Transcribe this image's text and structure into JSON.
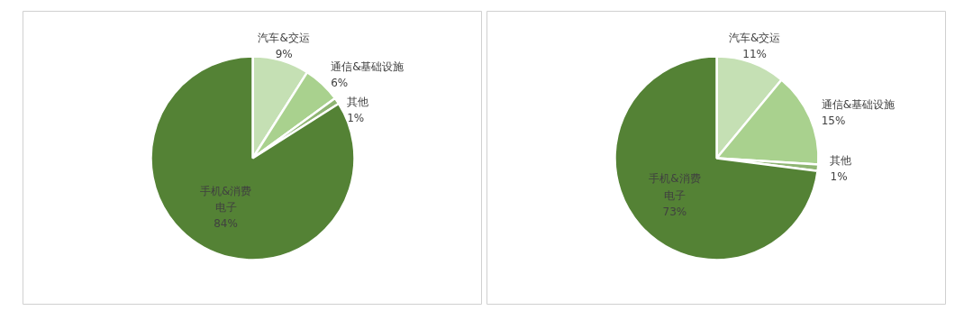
{
  "chart_data": [
    {
      "type": "pie",
      "categories": [
        "汽车&交运",
        "通信&基础设施",
        "其他",
        "手机&消费电子"
      ],
      "values": [
        9,
        6,
        1,
        84
      ],
      "value_labels": [
        "9%",
        "6%",
        "1%",
        "84%"
      ],
      "colors": [
        "#c5e0b4",
        "#a9d18e",
        "#8fb573",
        "#548235"
      ]
    },
    {
      "type": "pie",
      "categories": [
        "汽车&交运",
        "通信&基础设施",
        "其他",
        "手机&消费电子"
      ],
      "values": [
        11,
        15,
        1,
        73
      ],
      "value_labels": [
        "11%",
        "15%",
        "1%",
        "73%"
      ],
      "colors": [
        "#c5e0b4",
        "#a9d18e",
        "#8fb573",
        "#548235"
      ]
    }
  ]
}
